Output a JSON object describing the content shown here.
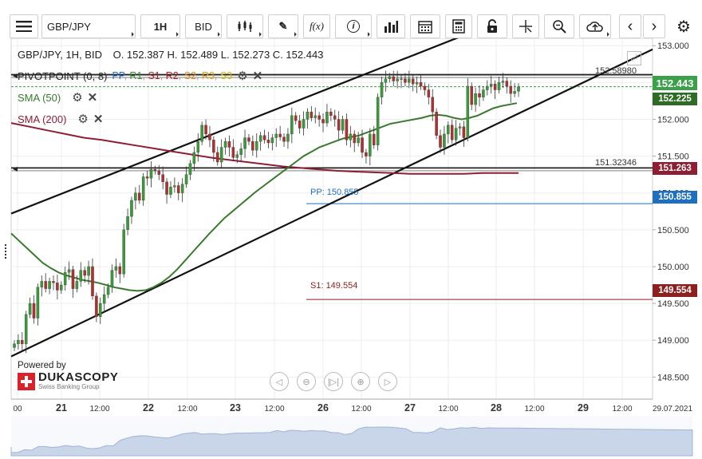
{
  "toolbar": {
    "symbol": "GBP/JPY",
    "timeframe": "1H",
    "side": "BID",
    "function_label": "f(x)",
    "icons": [
      "menu-icon",
      "chart-type-icon",
      "draw-icon",
      "function-icon",
      "info-icon",
      "bar-chart-icon",
      "calendar-icon",
      "calculator-icon",
      "lock-icon",
      "crosshair-icon",
      "zoom-icon",
      "cloud-upload-icon",
      "prev-icon",
      "next-icon",
      "settings-icon"
    ]
  },
  "header": {
    "instrument_line": "GBP/JPY, 1H, BID",
    "ohlc_line": "O. 152.387 H. 152.489 L. 152.273 C. 152.443"
  },
  "indicators": {
    "pivot_label": "PIVOTPOINT (0, 8)",
    "pivot_legend": [
      "PP",
      "R1",
      "S1",
      "R2",
      "S2",
      "R3",
      "S3"
    ],
    "sma50_label": "SMA (50)",
    "sma200_label": "SMA (200)"
  },
  "branding": {
    "powered_by": "Powered by",
    "name": "DUKASCOPY",
    "tagline": "Swiss Banking Group"
  },
  "colors": {
    "sma50": "#3a7a2e",
    "sma200": "#8c1f33",
    "candle_up": "#3a9a3a",
    "candle_down": "#b03030",
    "pp": "#1f6fbf",
    "s1": "#8c1f1f",
    "last_price_tag": "#2e8b3c"
  },
  "chart_data": {
    "type": "candlestick",
    "title": "GBP/JPY, 1H, BID",
    "y_axis_ticks": [
      "148.500",
      "149.000",
      "149.500",
      "150.000",
      "150.500",
      "151.000",
      "151.500",
      "152.000",
      "152.500",
      "153.000"
    ],
    "ylim": [
      148.2,
      153.1
    ],
    "x_axis_ticks": [
      "00",
      "21",
      "12:00",
      "22",
      "12:00",
      "23",
      "12:00",
      "26",
      "12:00",
      "27",
      "12:00",
      "28",
      "12:00",
      "29",
      "12:00",
      "29.07.2021"
    ],
    "price_tags": {
      "last": "152.443",
      "sma50": "152.225",
      "sma200": "151.263",
      "pp": "150.855",
      "s1": "149.554"
    },
    "horizontal_levels": [
      {
        "label": "152.58980",
        "value": 152.5898
      },
      {
        "label": "151.32346",
        "value": 151.32346
      },
      {
        "label": "PP: 150.855",
        "value": 150.855
      },
      {
        "label": "S1: 149.554",
        "value": 149.554
      }
    ],
    "channel": {
      "upper": [
        [
          0,
          150.72
        ],
        [
          100,
          154.15
        ]
      ],
      "lower": [
        [
          0,
          148.78
        ],
        [
          100,
          152.95
        ]
      ]
    },
    "candle_close": [
      148.95,
      149.0,
      148.95,
      149.35,
      149.5,
      149.3,
      149.72,
      149.8,
      149.7,
      149.8,
      149.78,
      149.68,
      149.75,
      149.92,
      149.96,
      149.7,
      149.8,
      149.95,
      149.88,
      150.0,
      149.6,
      149.32,
      149.5,
      149.62,
      149.72,
      149.95,
      150.0,
      149.9,
      150.5,
      150.68,
      150.9,
      151.0,
      150.9,
      151.22,
      151.2,
      151.32,
      151.3,
      151.25,
      151.15,
      150.98,
      151.08,
      151.1,
      151.0,
      151.12,
      151.25,
      151.4,
      151.55,
      151.7,
      151.92,
      151.8,
      151.72,
      151.55,
      151.42,
      151.62,
      151.7,
      151.62,
      151.48,
      151.52,
      151.6,
      151.75,
      151.7,
      151.58,
      151.7,
      151.78,
      151.72,
      151.68,
      151.75,
      151.8,
      151.76,
      151.7,
      151.8,
      152.05,
      151.98,
      151.88,
      152.0,
      152.1,
      152.02,
      152.05,
      152.0,
      151.95,
      152.1,
      152.05,
      152.0,
      151.85,
      152.0,
      151.72,
      151.8,
      151.68,
      151.75,
      151.55,
      151.5,
      151.8,
      151.65,
      152.3,
      152.5,
      152.55,
      152.58,
      152.52,
      152.55,
      152.55,
      152.5,
      152.55,
      152.48,
      152.5,
      152.45,
      152.4,
      152.3,
      152.1,
      151.78,
      151.62,
      151.8,
      151.92,
      151.72,
      151.88,
      151.9,
      151.75,
      152.45,
      152.2,
      152.35,
      152.3,
      152.4,
      152.45,
      152.48,
      152.4,
      152.5,
      152.52,
      152.45,
      152.35,
      152.38,
      152.44
    ],
    "sma50_values": [
      150.45,
      150.35,
      150.25,
      150.15,
      150.05,
      149.98,
      149.92,
      149.88,
      149.85,
      149.82,
      149.8,
      149.78,
      149.75,
      149.72,
      149.7,
      149.68,
      149.67,
      149.68,
      149.72,
      149.78,
      149.86,
      149.96,
      150.08,
      150.2,
      150.32,
      150.44,
      150.55,
      150.66,
      150.75,
      150.84,
      150.93,
      151.02,
      151.1,
      151.18,
      151.26,
      151.34,
      151.42,
      151.5,
      151.56,
      151.62,
      151.66,
      151.7,
      151.74,
      151.76,
      151.78,
      151.82,
      151.86,
      151.9,
      151.94,
      151.96,
      151.98,
      152.0,
      152.02,
      152.05,
      152.06,
      152.05,
      152.02,
      152.0,
      152.02,
      152.05,
      152.1,
      152.15,
      152.18,
      152.2,
      152.22
    ],
    "sma200_values": [
      151.95,
      151.9,
      151.85,
      151.8,
      151.75,
      151.72,
      151.68,
      151.64,
      151.6,
      151.56,
      151.52,
      151.48,
      151.45,
      151.42,
      151.39,
      151.36,
      151.34,
      151.32,
      151.3,
      151.29,
      151.28,
      151.27,
      151.26,
      151.26,
      151.26,
      151.26,
      151.27,
      151.27,
      151.27
    ]
  }
}
